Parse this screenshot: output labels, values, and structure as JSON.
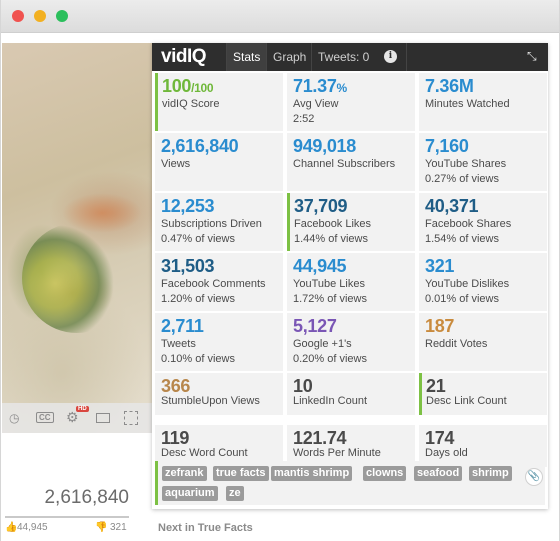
{
  "window": {
    "buttons": [
      "close",
      "minimize",
      "zoom"
    ]
  },
  "player": {
    "view_count": "2,616,840",
    "likes": "44,945",
    "dislikes": "321",
    "controls": {
      "cc": "CC",
      "hd": "HD"
    }
  },
  "panel": {
    "logo": "vidIQ",
    "tabs": [
      {
        "label": "Stats",
        "active": true
      },
      {
        "label": "Graph",
        "active": false
      },
      {
        "label": "Tweets: 0",
        "active": false
      }
    ],
    "icons": {
      "info": "info-icon",
      "collapse": "collapse-icon"
    },
    "stats": [
      {
        "value": "100",
        "value_suffix": "/100",
        "label": "vidIQ Score",
        "sub": "",
        "color": "#6fb83a",
        "mark": true
      },
      {
        "value": "71.37",
        "value_suffix": "%",
        "label": "Avg View",
        "sub": "2:52",
        "color": "#2a8ccf",
        "mark": false
      },
      {
        "value": "7.36M",
        "value_suffix": "",
        "label": "Minutes Watched",
        "sub": "",
        "color": "#2a8ccf",
        "mark": false
      },
      {
        "value": "2,616,840",
        "value_suffix": "",
        "label": "Views",
        "sub": "",
        "color": "#2a8ccf",
        "mark": false
      },
      {
        "value": "949,018",
        "value_suffix": "",
        "label": "Channel Subscribers",
        "sub": "",
        "color": "#2a8ccf",
        "mark": false
      },
      {
        "value": "7,160",
        "value_suffix": "",
        "label": "YouTube Shares",
        "sub": "0.27% of views",
        "color": "#2a8ccf",
        "mark": false
      },
      {
        "value": "12,253",
        "value_suffix": "",
        "label": "Subscriptions Driven",
        "sub": "0.47% of views",
        "color": "#2a8ccf",
        "mark": false
      },
      {
        "value": "37,709",
        "value_suffix": "",
        "label": "Facebook Likes",
        "sub": "1.44% of views",
        "color": "#1f5d86",
        "mark": true
      },
      {
        "value": "40,371",
        "value_suffix": "",
        "label": "Facebook Shares",
        "sub": "1.54% of views",
        "color": "#1f5d86",
        "mark": false
      },
      {
        "value": "31,503",
        "value_suffix": "",
        "label": "Facebook Comments",
        "sub": "1.20% of views",
        "color": "#1f5d86",
        "mark": false
      },
      {
        "value": "44,945",
        "value_suffix": "",
        "label": "YouTube Likes",
        "sub": "1.72% of views",
        "color": "#2a8ccf",
        "mark": false
      },
      {
        "value": "321",
        "value_suffix": "",
        "label": "YouTube Dislikes",
        "sub": "0.01% of views",
        "color": "#2a8ccf",
        "mark": false
      },
      {
        "value": "2,711",
        "value_suffix": "",
        "label": "Tweets",
        "sub": "0.10% of views",
        "color": "#2a8ccf",
        "mark": false
      },
      {
        "value": "5,127",
        "value_suffix": "",
        "label": "Google +1's",
        "sub": "0.20% of views",
        "color": "#7a56b5",
        "mark": false
      },
      {
        "value": "187",
        "value_suffix": "",
        "label": "Reddit Votes",
        "sub": "",
        "color": "#c98b3e",
        "mark": false
      },
      {
        "value": "366",
        "value_suffix": "",
        "label": "StumbleUpon Views",
        "sub": "",
        "color": "#b8874c",
        "mark": false
      },
      {
        "value": "10",
        "value_suffix": "",
        "label": "LinkedIn Count",
        "sub": "",
        "color": "#4a4a4a",
        "mark": false
      },
      {
        "value": "21",
        "value_suffix": "",
        "label": "Desc Link Count",
        "sub": "",
        "color": "#4a4a4a",
        "mark": true
      },
      {
        "value": "119",
        "value_suffix": "",
        "label": "Desc Word Count",
        "sub": "",
        "color": "#4a4a4a",
        "mark": false
      },
      {
        "value": "121.74",
        "value_suffix": "",
        "label": "Words Per Minute",
        "sub": "",
        "color": "#4a4a4a",
        "mark": false
      },
      {
        "value": "174",
        "value_suffix": "",
        "label": "Days old",
        "sub": "",
        "color": "#4a4a4a",
        "mark": false
      }
    ],
    "tags": [
      "zefrank",
      "true facts",
      "mantis shrimp",
      "clowns",
      "seafood",
      "shrimp",
      "aquarium",
      "ze"
    ]
  },
  "next_label": "Next in True Facts"
}
